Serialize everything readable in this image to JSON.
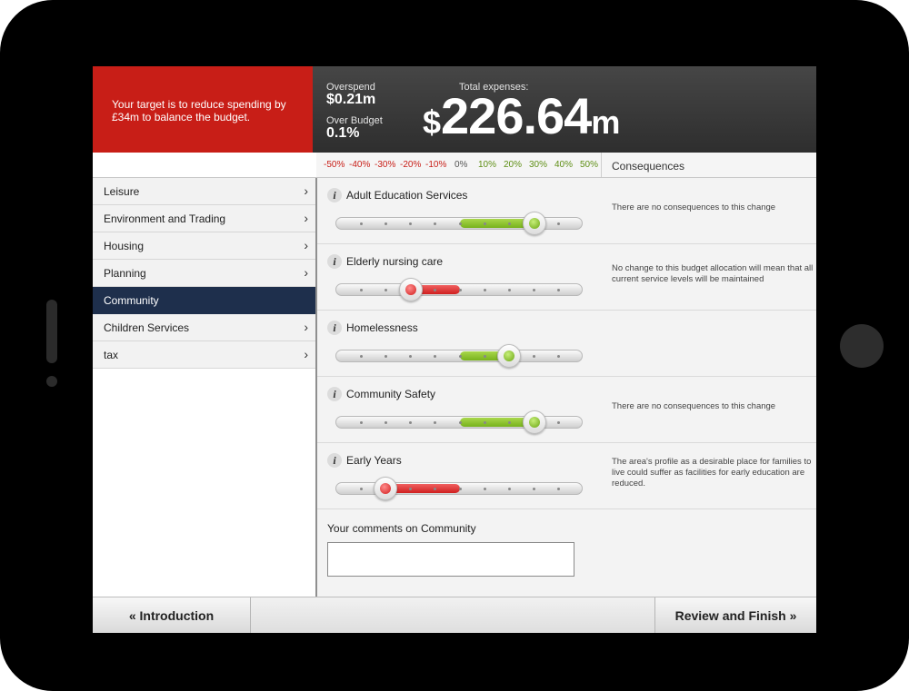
{
  "target_message": "Your target is to reduce spending by £34m to balance the budget.",
  "summary": {
    "overspend_label": "Overspend",
    "overspend_value": "$0.21m",
    "over_budget_label": "Over Budget",
    "over_budget_value": "0.1%",
    "total_label": "Total expenses:",
    "total_currency": "$",
    "total_value": "226.64",
    "total_unit": "m"
  },
  "scale": [
    "-50%",
    "-40%",
    "-30%",
    "-20%",
    "-10%",
    "0%",
    "10%",
    "20%",
    "30%",
    "40%",
    "50%"
  ],
  "consequences_header": "Consequences",
  "nav": [
    {
      "label": "Leisure",
      "active": false
    },
    {
      "label": "Environment and Trading",
      "active": false
    },
    {
      "label": "Housing",
      "active": false
    },
    {
      "label": "Planning",
      "active": false
    },
    {
      "label": "Community",
      "active": true
    },
    {
      "label": "Children Services",
      "active": false
    },
    {
      "label": "tax",
      "active": false
    }
  ],
  "nav_chevron": "›",
  "services": [
    {
      "name": "Adult Education Services",
      "change_pct": 30,
      "consequence": "There are no consequences to this change"
    },
    {
      "name": "Elderly nursing care",
      "change_pct": -20,
      "consequence": "No change to this budget allocation will mean that all current service levels will be maintained"
    },
    {
      "name": "Homelessness",
      "change_pct": 20,
      "consequence": ""
    },
    {
      "name": "Community Safety",
      "change_pct": 30,
      "consequence": "There are no consequences to this change"
    },
    {
      "name": "Early Years",
      "change_pct": -30,
      "consequence": "The area's profile as a desirable place for families to live could suffer as facilities for early education are reduced."
    }
  ],
  "comments_label": "Your comments on Community",
  "comments_value": "",
  "footer": {
    "prev_label": "«  Introduction",
    "next_label": "Review and Finish  »"
  },
  "colors": {
    "target_bg": "#c81e17",
    "header_bg": "#3a3a3a",
    "active_nav": "#1e2f4c",
    "increase": "#8cc63f",
    "decrease": "#e03030"
  }
}
